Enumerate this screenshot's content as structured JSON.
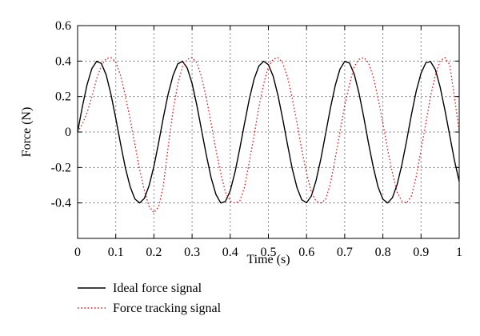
{
  "chart_data": {
    "type": "line",
    "xlabel": "Time (s)",
    "ylabel": "Force (N)",
    "xlim": [
      0,
      1
    ],
    "ylim": [
      -0.6,
      0.6
    ],
    "x_ticks": [
      0,
      0.1,
      0.2,
      0.3,
      0.4,
      0.5,
      0.6,
      0.7,
      0.8,
      0.9,
      1
    ],
    "x_tick_labels": [
      "0",
      "0.1",
      "0.2",
      "0.3",
      "0.4",
      "0.5",
      "0.6",
      "0.7",
      "0.8",
      "0.9",
      "1"
    ],
    "y_ticks": [
      -0.4,
      -0.2,
      0,
      0.2,
      0.4,
      0.6
    ],
    "y_tick_labels": [
      "-0.4",
      "-0.2",
      "0",
      "0.2",
      "0.4",
      "0.6"
    ],
    "grid": true,
    "legend_position": "bottom-left, below plot",
    "series": [
      {
        "name": "Ideal force signal",
        "color": "#000000",
        "style": "solid",
        "x": [
          0,
          0.0125,
          0.025,
          0.0375,
          0.05,
          0.0625,
          0.075,
          0.0875,
          0.1,
          0.1125,
          0.125,
          0.1375,
          0.15,
          0.1625,
          0.175,
          0.1875,
          0.2,
          0.2125,
          0.225,
          0.2375,
          0.25,
          0.2625,
          0.275,
          0.2875,
          0.3,
          0.3125,
          0.325,
          0.3375,
          0.35,
          0.3625,
          0.375,
          0.3875,
          0.4,
          0.4125,
          0.425,
          0.4375,
          0.45,
          0.4625,
          0.475,
          0.4875,
          0.5,
          0.5125,
          0.525,
          0.5375,
          0.55,
          0.5625,
          0.575,
          0.5875,
          0.6,
          0.6125,
          0.625,
          0.6375,
          0.65,
          0.6625,
          0.675,
          0.6875,
          0.7,
          0.7125,
          0.725,
          0.7375,
          0.75,
          0.7625,
          0.775,
          0.7875,
          0.8,
          0.8125,
          0.825,
          0.8375,
          0.85,
          0.8625,
          0.875,
          0.8875,
          0.9,
          0.9125,
          0.925,
          0.9375,
          0.95,
          0.9625,
          0.975,
          0.9875,
          1
        ],
        "y": [
          0,
          0.144,
          0.268,
          0.358,
          0.399,
          0.386,
          0.321,
          0.212,
          0.077,
          -0.066,
          -0.2,
          -0.307,
          -0.377,
          -0.4,
          -0.374,
          -0.302,
          -0.193,
          -0.058,
          0.085,
          0.216,
          0.319,
          0.384,
          0.399,
          0.36,
          0.274,
          0.15,
          0.009,
          -0.132,
          -0.258,
          -0.352,
          -0.4,
          -0.392,
          -0.331,
          -0.226,
          -0.094,
          0.049,
          0.185,
          0.298,
          0.372,
          0.399,
          0.38,
          0.314,
          0.208,
          0.074,
          -0.071,
          -0.207,
          -0.315,
          -0.382,
          -0.399,
          -0.361,
          -0.274,
          -0.151,
          -0.008,
          0.134,
          0.261,
          0.354,
          0.398,
          0.389,
          0.326,
          0.218,
          0.081,
          -0.065,
          -0.2,
          -0.31,
          -0.379,
          -0.4,
          -0.371,
          -0.295,
          -0.183,
          -0.046,
          0.1,
          0.231,
          0.331,
          0.39,
          0.397,
          0.352,
          0.255,
          0.125,
          -0.018,
          -0.159,
          -0.279
        ]
      },
      {
        "name": "Force tracking signal",
        "color": "#e31a1c",
        "style": "dotted",
        "x": [
          0,
          0.0125,
          0.025,
          0.0375,
          0.05,
          0.0625,
          0.075,
          0.0875,
          0.1,
          0.1125,
          0.125,
          0.1375,
          0.15,
          0.1625,
          0.175,
          0.1875,
          0.2,
          0.2125,
          0.225,
          0.2375,
          0.25,
          0.2625,
          0.275,
          0.2875,
          0.3,
          0.3125,
          0.325,
          0.3375,
          0.35,
          0.3625,
          0.375,
          0.3875,
          0.4,
          0.4125,
          0.425,
          0.4375,
          0.45,
          0.4625,
          0.475,
          0.4875,
          0.5,
          0.5125,
          0.525,
          0.5375,
          0.55,
          0.5625,
          0.575,
          0.5875,
          0.6,
          0.6125,
          0.625,
          0.6375,
          0.65,
          0.6625,
          0.675,
          0.6875,
          0.7,
          0.7125,
          0.725,
          0.7375,
          0.75,
          0.7625,
          0.775,
          0.7875,
          0.8,
          0.8125,
          0.825,
          0.8375,
          0.85,
          0.8625,
          0.875,
          0.8875,
          0.9,
          0.9125,
          0.925,
          0.9375,
          0.95,
          0.9625,
          0.975,
          0.9875,
          1
        ],
        "y": [
          0,
          0.045,
          0.11,
          0.2,
          0.3,
          0.375,
          0.415,
          0.42,
          0.395,
          0.32,
          0.205,
          0.075,
          -0.07,
          -0.21,
          -0.33,
          -0.42,
          -0.455,
          -0.42,
          -0.3,
          -0.08,
          0.12,
          0.27,
          0.37,
          0.41,
          0.42,
          0.39,
          0.31,
          0.19,
          0.05,
          -0.1,
          -0.23,
          -0.34,
          -0.39,
          -0.4,
          -0.39,
          -0.31,
          -0.17,
          -0.02,
          0.14,
          0.27,
          0.37,
          0.41,
          0.42,
          0.39,
          0.31,
          0.19,
          0.05,
          -0.1,
          -0.23,
          -0.34,
          -0.39,
          -0.4,
          -0.38,
          -0.29,
          -0.15,
          0.0,
          0.15,
          0.27,
          0.37,
          0.41,
          0.42,
          0.39,
          0.31,
          0.19,
          0.05,
          -0.1,
          -0.23,
          -0.34,
          -0.39,
          -0.4,
          -0.36,
          -0.25,
          -0.1,
          0.05,
          0.2,
          0.32,
          0.4,
          0.42,
          0.38,
          0.2,
          0.0
        ]
      }
    ]
  }
}
